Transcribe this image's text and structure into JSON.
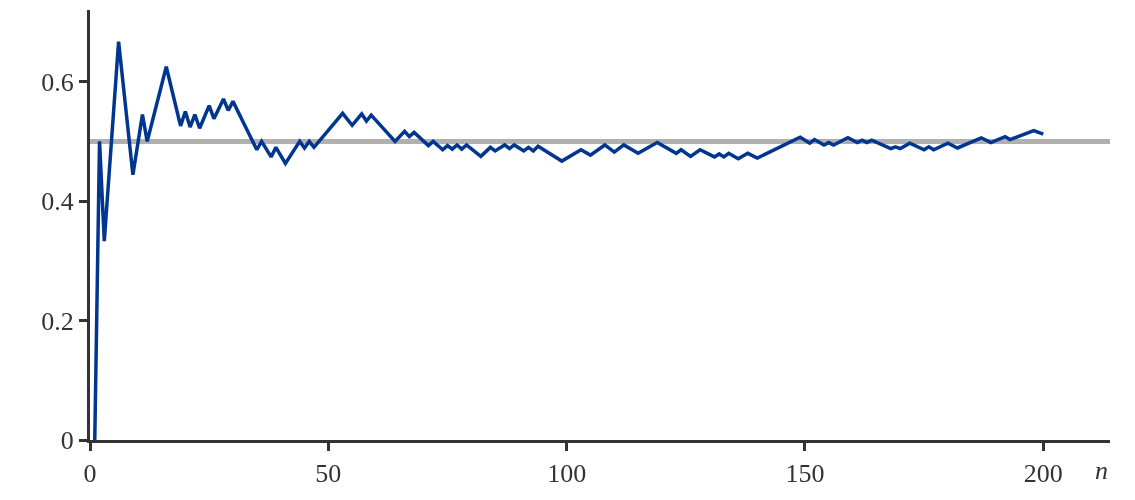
{
  "chart_data": {
    "type": "line",
    "xlabel": "n",
    "x": [
      1,
      2,
      3,
      6,
      9,
      11,
      12,
      16,
      19,
      20,
      21,
      22,
      23,
      25,
      26,
      28,
      29,
      30,
      35,
      36,
      38,
      39,
      41,
      44,
      45,
      46,
      47,
      53,
      55,
      57,
      58,
      59,
      64,
      66,
      67,
      68,
      71,
      72,
      74,
      75,
      76,
      77,
      78,
      79,
      82,
      84,
      85,
      87,
      88,
      89,
      91,
      92,
      93,
      94,
      99,
      103,
      105,
      108,
      110,
      112,
      115,
      119,
      123,
      124,
      126,
      128,
      131,
      132,
      133,
      134,
      136,
      138,
      140,
      149,
      151,
      152,
      154,
      155,
      156,
      159,
      161,
      162,
      163,
      164,
      168,
      169,
      170,
      172,
      175,
      176,
      177,
      180,
      182,
      187,
      189,
      192,
      193,
      198,
      200
    ],
    "series": [
      {
        "color": "#00368f",
        "values": [
          0,
          0.5,
          0.333,
          0.667,
          0.444,
          0.545,
          0.5,
          0.625,
          0.526,
          0.55,
          0.524,
          0.545,
          0.522,
          0.56,
          0.538,
          0.571,
          0.552,
          0.567,
          0.486,
          0.5,
          0.474,
          0.49,
          0.463,
          0.5,
          0.489,
          0.5,
          0.49,
          0.547,
          0.527,
          0.546,
          0.534,
          0.544,
          0.5,
          0.517,
          0.508,
          0.515,
          0.493,
          0.5,
          0.486,
          0.493,
          0.487,
          0.494,
          0.487,
          0.494,
          0.475,
          0.49,
          0.484,
          0.494,
          0.488,
          0.494,
          0.484,
          0.49,
          0.484,
          0.492,
          0.467,
          0.486,
          0.477,
          0.494,
          0.482,
          0.494,
          0.48,
          0.498,
          0.48,
          0.486,
          0.475,
          0.486,
          0.474,
          0.479,
          0.474,
          0.48,
          0.471,
          0.48,
          0.472,
          0.507,
          0.497,
          0.503,
          0.494,
          0.498,
          0.494,
          0.506,
          0.498,
          0.502,
          0.498,
          0.502,
          0.488,
          0.491,
          0.488,
          0.497,
          0.486,
          0.491,
          0.486,
          0.497,
          0.489,
          0.506,
          0.498,
          0.508,
          0.503,
          0.518,
          0.512
        ]
      }
    ],
    "xlim": [
      0,
      214
    ],
    "xticks": [
      0,
      50,
      100,
      150,
      200
    ],
    "ylim": [
      0,
      0.72
    ],
    "yticks": [
      0,
      {
        "value": 0.2,
        "label": "0.2"
      },
      {
        "value": 0.4,
        "label": "0.4"
      },
      {
        "value": 0.6,
        "label": "0.6"
      }
    ],
    "ref_lines": [
      {
        "axis": "y",
        "value": 0.5,
        "color": "#b0b0b0"
      }
    ],
    "grid": false,
    "legend": false,
    "marker": "none",
    "line_style": "solid"
  }
}
